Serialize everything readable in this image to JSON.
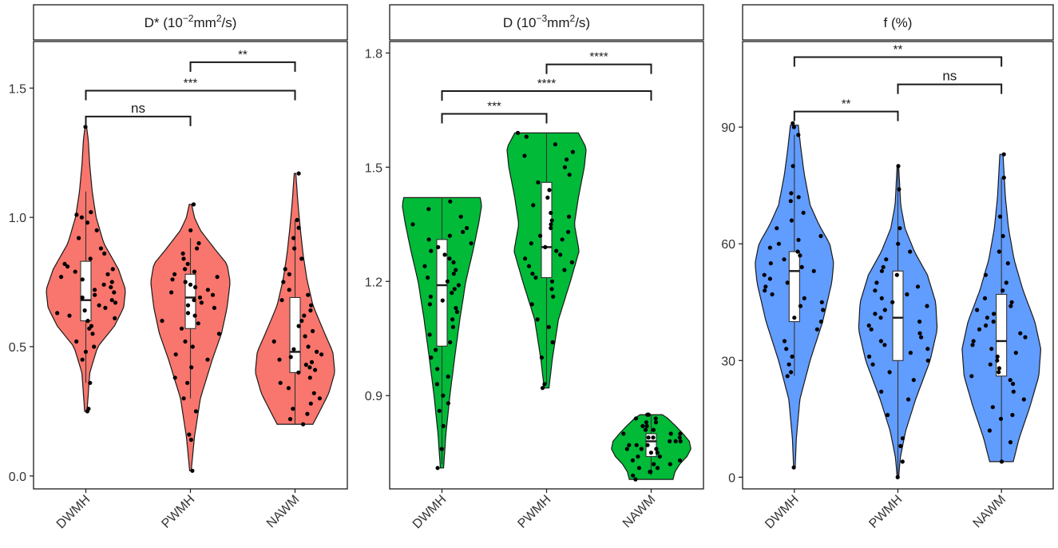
{
  "chart_data": [
    {
      "type": "violin",
      "title_parts": {
        "prefix": "D* (10",
        "exp1": "−2",
        "mid": "mm",
        "exp2": "2",
        "suffix": "/s)"
      },
      "fill": "#f8766d",
      "categories": [
        "DWMH",
        "PWMH",
        "NAWM"
      ],
      "ylim": [
        -0.05,
        1.68
      ],
      "yticks": [
        0.0,
        0.5,
        1.0,
        1.5
      ],
      "ytick_labels": [
        "0.0",
        "0.5",
        "1.0",
        "1.5"
      ],
      "groups": [
        {
          "name": "DWMH",
          "min": 0.25,
          "max": 1.35,
          "q1": 0.6,
          "median": 0.68,
          "q3": 0.83,
          "whisker_low": 0.36,
          "whisker_high": 1.1,
          "density": [
            [
              0.25,
              0.03
            ],
            [
              0.4,
              0.1
            ],
            [
              0.5,
              0.3
            ],
            [
              0.58,
              0.72
            ],
            [
              0.65,
              0.95
            ],
            [
              0.72,
              1.0
            ],
            [
              0.8,
              0.82
            ],
            [
              0.9,
              0.45
            ],
            [
              1.0,
              0.26
            ],
            [
              1.1,
              0.16
            ],
            [
              1.2,
              0.1
            ],
            [
              1.3,
              0.06
            ],
            [
              1.35,
              0.02
            ]
          ],
          "points": [
            0.25,
            0.26,
            0.36,
            0.45,
            0.48,
            0.5,
            0.52,
            0.55,
            0.57,
            0.58,
            0.6,
            0.61,
            0.62,
            0.63,
            0.64,
            0.65,
            0.66,
            0.67,
            0.68,
            0.69,
            0.7,
            0.71,
            0.72,
            0.73,
            0.74,
            0.75,
            0.76,
            0.77,
            0.78,
            0.79,
            0.8,
            0.81,
            0.82,
            0.84,
            0.86,
            0.88,
            0.92,
            0.95,
            0.98,
            1.0,
            1.02,
            1.01,
            1.35
          ]
        },
        {
          "name": "PWMH",
          "min": 0.02,
          "max": 1.05,
          "q1": 0.57,
          "median": 0.69,
          "q3": 0.78,
          "whisker_low": 0.3,
          "whisker_high": 0.92,
          "density": [
            [
              0.02,
              0.02
            ],
            [
              0.15,
              0.1
            ],
            [
              0.3,
              0.25
            ],
            [
              0.45,
              0.55
            ],
            [
              0.55,
              0.78
            ],
            [
              0.65,
              0.92
            ],
            [
              0.75,
              1.0
            ],
            [
              0.82,
              0.92
            ],
            [
              0.88,
              0.6
            ],
            [
              0.95,
              0.25
            ],
            [
              1.0,
              0.1
            ],
            [
              1.05,
              0.03
            ]
          ],
          "points": [
            0.02,
            0.14,
            0.16,
            0.25,
            0.3,
            0.36,
            0.38,
            0.42,
            0.45,
            0.47,
            0.5,
            0.52,
            0.55,
            0.57,
            0.59,
            0.6,
            0.62,
            0.63,
            0.65,
            0.66,
            0.67,
            0.68,
            0.69,
            0.7,
            0.71,
            0.72,
            0.73,
            0.74,
            0.75,
            0.76,
            0.77,
            0.78,
            0.79,
            0.8,
            0.82,
            0.84,
            0.86,
            0.88,
            0.9,
            0.95,
            1.05
          ]
        },
        {
          "name": "NAWM",
          "min": 0.2,
          "max": 1.17,
          "q1": 0.4,
          "median": 0.48,
          "q3": 0.69,
          "whisker_low": 0.2,
          "whisker_high": 0.99,
          "density": [
            [
              0.2,
              0.45
            ],
            [
              0.25,
              0.62
            ],
            [
              0.32,
              0.85
            ],
            [
              0.4,
              1.0
            ],
            [
              0.48,
              0.95
            ],
            [
              0.56,
              0.72
            ],
            [
              0.66,
              0.45
            ],
            [
              0.76,
              0.3
            ],
            [
              0.86,
              0.2
            ],
            [
              0.96,
              0.13
            ],
            [
              1.06,
              0.07
            ],
            [
              1.17,
              0.02
            ]
          ],
          "points": [
            0.2,
            0.22,
            0.24,
            0.26,
            0.28,
            0.3,
            0.32,
            0.34,
            0.36,
            0.38,
            0.4,
            0.41,
            0.42,
            0.43,
            0.44,
            0.45,
            0.46,
            0.47,
            0.48,
            0.49,
            0.5,
            0.52,
            0.54,
            0.56,
            0.58,
            0.6,
            0.62,
            0.64,
            0.66,
            0.68,
            0.7,
            0.72,
            0.75,
            0.78,
            0.8,
            0.84,
            0.88,
            0.92,
            0.96,
            0.99,
            1.17
          ]
        }
      ],
      "comparisons": [
        {
          "from": 0,
          "to": 1,
          "y": 1.39,
          "label": "ns"
        },
        {
          "from": 0,
          "to": 2,
          "y": 1.49,
          "label": "***"
        },
        {
          "from": 1,
          "to": 2,
          "y": 1.6,
          "label": "**"
        }
      ]
    },
    {
      "type": "violin",
      "title_parts": {
        "prefix": "D (10",
        "exp1": "−3",
        "mid": "mm",
        "exp2": "2",
        "suffix": "/s)"
      },
      "fill": "#00ba38",
      "categories": [
        "DWMH",
        "PWMH",
        "NAWM"
      ],
      "ylim": [
        0.655,
        1.83
      ],
      "yticks": [
        0.9,
        1.2,
        1.5,
        1.8
      ],
      "ytick_labels": [
        "0.9",
        "1.2",
        "1.5",
        "1.8"
      ],
      "groups": [
        {
          "name": "DWMH",
          "min": 0.71,
          "max": 1.42,
          "q1": 1.03,
          "median": 1.19,
          "q3": 1.31,
          "whisker_low": 0.72,
          "whisker_high": 1.42,
          "density": [
            [
              0.71,
              0.04
            ],
            [
              0.8,
              0.1
            ],
            [
              0.9,
              0.2
            ],
            [
              1.0,
              0.32
            ],
            [
              1.1,
              0.45
            ],
            [
              1.2,
              0.6
            ],
            [
              1.28,
              0.78
            ],
            [
              1.35,
              0.92
            ],
            [
              1.4,
              1.0
            ],
            [
              1.42,
              0.96
            ]
          ],
          "points": [
            0.71,
            0.76,
            0.82,
            0.86,
            0.88,
            0.9,
            0.93,
            0.95,
            0.97,
            1.0,
            1.02,
            1.04,
            1.06,
            1.08,
            1.1,
            1.12,
            1.13,
            1.14,
            1.15,
            1.16,
            1.17,
            1.18,
            1.19,
            1.2,
            1.21,
            1.22,
            1.23,
            1.24,
            1.25,
            1.26,
            1.27,
            1.28,
            1.29,
            1.3,
            1.31,
            1.32,
            1.33,
            1.34,
            1.35,
            1.37,
            1.39,
            1.41
          ]
        },
        {
          "name": "PWMH",
          "min": 0.92,
          "max": 1.59,
          "q1": 1.21,
          "median": 1.29,
          "q3": 1.46,
          "whisker_low": 0.93,
          "whisker_high": 1.59,
          "density": [
            [
              0.92,
              0.06
            ],
            [
              1.0,
              0.15
            ],
            [
              1.1,
              0.3
            ],
            [
              1.2,
              0.6
            ],
            [
              1.28,
              0.82
            ],
            [
              1.35,
              0.7
            ],
            [
              1.42,
              0.8
            ],
            [
              1.5,
              0.95
            ],
            [
              1.55,
              1.0
            ],
            [
              1.59,
              0.8
            ]
          ],
          "points": [
            0.92,
            0.93,
            1.0,
            1.04,
            1.08,
            1.1,
            1.14,
            1.16,
            1.18,
            1.2,
            1.21,
            1.22,
            1.23,
            1.24,
            1.25,
            1.26,
            1.27,
            1.28,
            1.29,
            1.3,
            1.31,
            1.32,
            1.33,
            1.34,
            1.35,
            1.36,
            1.37,
            1.38,
            1.4,
            1.42,
            1.44,
            1.46,
            1.48,
            1.5,
            1.52,
            1.53,
            1.54,
            1.56,
            1.58,
            1.59
          ]
        },
        {
          "name": "NAWM",
          "min": 0.68,
          "max": 0.85,
          "q1": 0.74,
          "median": 0.78,
          "q3": 0.8,
          "whisker_low": 0.69,
          "whisker_high": 0.85,
          "density": [
            [
              0.68,
              0.55
            ],
            [
              0.7,
              0.6
            ],
            [
              0.72,
              0.72
            ],
            [
              0.74,
              0.9
            ],
            [
              0.76,
              1.0
            ],
            [
              0.78,
              0.96
            ],
            [
              0.8,
              0.8
            ],
            [
              0.82,
              0.62
            ],
            [
              0.84,
              0.42
            ],
            [
              0.85,
              0.28
            ]
          ],
          "points": [
            0.68,
            0.69,
            0.7,
            0.7,
            0.71,
            0.71,
            0.72,
            0.72,
            0.73,
            0.73,
            0.74,
            0.74,
            0.75,
            0.75,
            0.76,
            0.76,
            0.76,
            0.77,
            0.77,
            0.77,
            0.78,
            0.78,
            0.78,
            0.79,
            0.79,
            0.79,
            0.8,
            0.8,
            0.8,
            0.81,
            0.81,
            0.82,
            0.82,
            0.83,
            0.83,
            0.84,
            0.84,
            0.85,
            0.85
          ]
        }
      ],
      "comparisons": [
        {
          "from": 0,
          "to": 1,
          "y": 1.64,
          "label": "***"
        },
        {
          "from": 0,
          "to": 2,
          "y": 1.7,
          "label": "****"
        },
        {
          "from": 1,
          "to": 2,
          "y": 1.77,
          "label": "****"
        }
      ]
    },
    {
      "type": "violin",
      "title_parts": {
        "prefix": "f (%)",
        "exp1": "",
        "mid": "",
        "exp2": "",
        "suffix": ""
      },
      "fill": "#619cff",
      "categories": [
        "DWMH",
        "PWMH",
        "NAWM"
      ],
      "ylim": [
        -3,
        112
      ],
      "yticks": [
        0,
        30,
        60,
        90
      ],
      "ytick_labels": [
        "0",
        "30",
        "60",
        "90"
      ],
      "groups": [
        {
          "name": "DWMH",
          "min": 2.5,
          "max": 90.5,
          "q1": 40,
          "median": 53,
          "q3": 58,
          "whisker_low": 26,
          "whisker_high": 88,
          "density": [
            [
              2.5,
              0.02
            ],
            [
              10,
              0.05
            ],
            [
              20,
              0.14
            ],
            [
              30,
              0.4
            ],
            [
              40,
              0.72
            ],
            [
              50,
              0.95
            ],
            [
              55,
              1.0
            ],
            [
              60,
              0.9
            ],
            [
              65,
              0.62
            ],
            [
              70,
              0.4
            ],
            [
              78,
              0.25
            ],
            [
              85,
              0.16
            ],
            [
              90.5,
              0.1
            ]
          ],
          "points": [
            2.5,
            26,
            27,
            29,
            31,
            33,
            35,
            38,
            40,
            41,
            43,
            44,
            45,
            46,
            47,
            48,
            49,
            50,
            51,
            52,
            53,
            54,
            55,
            56,
            57,
            58,
            59,
            60,
            61,
            62,
            64,
            66,
            68,
            71,
            72,
            73,
            80,
            88,
            90,
            91
          ]
        },
        {
          "name": "PWMH",
          "min": 0,
          "max": 80,
          "q1": 30,
          "median": 41,
          "q3": 53,
          "whisker_low": 0,
          "whisker_high": 80,
          "density": [
            [
              0,
              0.02
            ],
            [
              5,
              0.06
            ],
            [
              12,
              0.2
            ],
            [
              20,
              0.45
            ],
            [
              30,
              0.82
            ],
            [
              38,
              1.0
            ],
            [
              45,
              0.96
            ],
            [
              52,
              0.75
            ],
            [
              58,
              0.42
            ],
            [
              64,
              0.18
            ],
            [
              70,
              0.07
            ],
            [
              80,
              0.02
            ]
          ],
          "points": [
            0,
            4,
            8,
            10,
            16,
            20,
            22,
            25,
            27,
            29,
            30,
            31,
            32,
            33,
            34,
            35,
            36,
            37,
            38,
            39,
            40,
            41,
            42,
            43,
            44,
            45,
            46,
            47,
            48,
            49,
            50,
            52,
            53,
            54,
            56,
            58,
            60,
            64,
            74,
            80
          ]
        },
        {
          "name": "NAWM",
          "min": 4,
          "max": 83,
          "q1": 26,
          "median": 35,
          "q3": 47,
          "whisker_low": 4,
          "whisker_high": 77,
          "density": [
            [
              4,
              0.3
            ],
            [
              10,
              0.45
            ],
            [
              18,
              0.72
            ],
            [
              26,
              0.95
            ],
            [
              33,
              1.0
            ],
            [
              40,
              0.85
            ],
            [
              48,
              0.55
            ],
            [
              56,
              0.32
            ],
            [
              64,
              0.18
            ],
            [
              72,
              0.1
            ],
            [
              83,
              0.04
            ]
          ],
          "points": [
            4,
            9,
            12,
            15,
            16,
            18,
            20,
            22,
            24,
            25,
            26,
            27,
            28,
            29,
            30,
            31,
            32,
            33,
            34,
            35,
            36,
            37,
            38,
            39,
            40,
            41,
            42,
            43,
            44,
            45,
            46,
            48,
            50,
            52,
            55,
            58,
            62,
            67,
            77,
            83
          ]
        }
      ],
      "comparisons": [
        {
          "from": 0,
          "to": 1,
          "y": 94,
          "label": "**"
        },
        {
          "from": 1,
          "to": 2,
          "y": 101,
          "label": "ns"
        },
        {
          "from": 0,
          "to": 2,
          "y": 108,
          "label": "**"
        }
      ]
    }
  ]
}
